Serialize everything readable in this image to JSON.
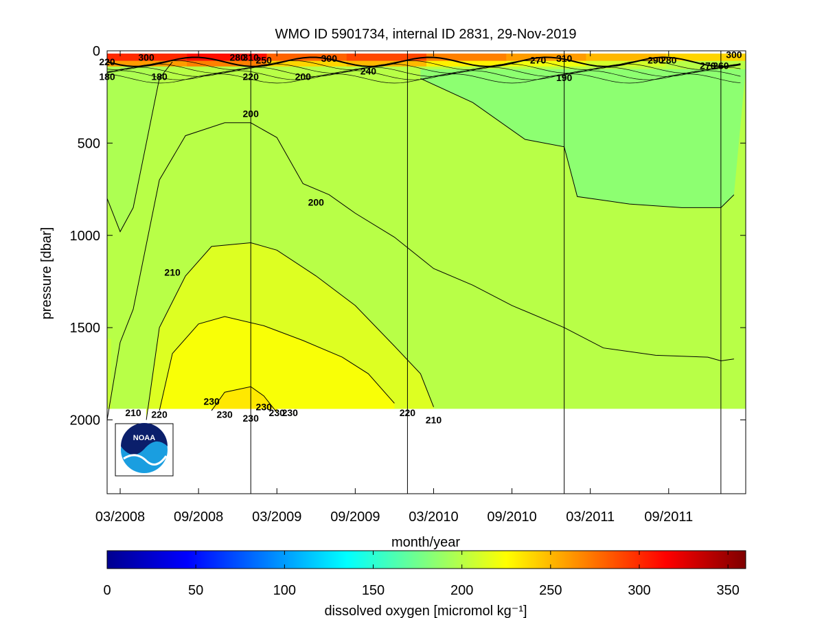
{
  "chart_data": {
    "type": "heatmap",
    "title": "WMO ID 5901734, internal ID 2831, 29-Nov-2019",
    "xlabel": "month/year",
    "ylabel": "pressure [dbar]",
    "colorbar_label": "dissolved oxygen [micromol kg⁻¹]",
    "x_ticks": [
      "03/2008",
      "09/2008",
      "03/2009",
      "09/2009",
      "03/2010",
      "09/2010",
      "03/2011",
      "09/2011"
    ],
    "y_ticks": [
      0,
      500,
      1000,
      1500,
      2000
    ],
    "colorbar_ticks": [
      0,
      50,
      100,
      150,
      200,
      250,
      300,
      350
    ],
    "x_range": [
      "2008-02",
      "2012-02"
    ],
    "ylim": [
      0,
      2400
    ],
    "clim": [
      0,
      360
    ],
    "colormap": "jet",
    "year_boundaries": [
      "2009-01",
      "2010-01",
      "2011-01",
      "2012-01"
    ],
    "contours": [
      {
        "level": 180,
        "label": "180",
        "points": [
          [
            "2008-02",
            800
          ],
          [
            "2008-03",
            980
          ],
          [
            "2008-04",
            850
          ],
          [
            "2008-05",
            500
          ],
          [
            "2008-06",
            150
          ],
          [
            "2008-07",
            60
          ]
        ]
      },
      {
        "level": 200,
        "label": "200",
        "points": [
          [
            "2008-02",
            2000
          ],
          [
            "2008-03",
            1580
          ],
          [
            "2008-04",
            1400
          ],
          [
            "2008-06",
            700
          ],
          [
            "2008-08",
            460
          ],
          [
            "2008-11",
            390
          ],
          [
            "2009-01",
            390
          ],
          [
            "2009-03",
            470
          ],
          [
            "2009-05",
            720
          ],
          [
            "2009-07",
            780
          ],
          [
            "2009-09",
            880
          ],
          [
            "2009-12",
            1010
          ],
          [
            "2010-03",
            1180
          ],
          [
            "2010-06",
            1270
          ],
          [
            "2010-09",
            1380
          ],
          [
            "2011-01",
            1500
          ],
          [
            "2011-04",
            1610
          ],
          [
            "2011-08",
            1650
          ],
          [
            "2011-12",
            1660
          ],
          [
            "2012-01",
            1680
          ],
          [
            "2012-02",
            1670
          ]
        ]
      },
      {
        "level": 210,
        "label": "210",
        "points": [
          [
            "2008-05",
            2000
          ],
          [
            "2008-06",
            1500
          ],
          [
            "2008-08",
            1220
          ],
          [
            "2008-10",
            1060
          ],
          [
            "2009-01",
            1040
          ],
          [
            "2009-03",
            1080
          ],
          [
            "2009-06",
            1220
          ],
          [
            "2009-09",
            1380
          ],
          [
            "2009-12",
            1600
          ],
          [
            "2010-02",
            1750
          ],
          [
            "2010-03",
            1930
          ]
        ]
      },
      {
        "level": 220,
        "label": "220",
        "points": [
          [
            "2008-06",
            1950
          ],
          [
            "2008-07",
            1640
          ],
          [
            "2008-09",
            1480
          ],
          [
            "2008-11",
            1440
          ],
          [
            "2009-02",
            1490
          ],
          [
            "2009-05",
            1570
          ],
          [
            "2009-08",
            1660
          ],
          [
            "2009-10",
            1750
          ],
          [
            "2009-12",
            1910
          ]
        ]
      },
      {
        "level": 230,
        "label": "230",
        "points": [
          [
            "2008-10",
            1950
          ],
          [
            "2008-11",
            1850
          ],
          [
            "2009-01",
            1820
          ],
          [
            "2009-02",
            1870
          ],
          [
            "2009-03",
            1960
          ]
        ]
      },
      {
        "level": 190,
        "label": "190",
        "points": [
          [
            "2010-02",
            150
          ],
          [
            "2010-06",
            280
          ],
          [
            "2010-10",
            480
          ],
          [
            "2011-01",
            520
          ],
          [
            "2011-02",
            790
          ],
          [
            "2011-06",
            830
          ],
          [
            "2011-10",
            850
          ],
          [
            "2012-01",
            850
          ],
          [
            "2012-02",
            780
          ]
        ]
      }
    ],
    "contour_labels": [
      {
        "text": "220",
        "x": "2008-02",
        "y": 60
      },
      {
        "text": "300",
        "x": "2008-05",
        "y": 35
      },
      {
        "text": "180",
        "x": "2008-02",
        "y": 140
      },
      {
        "text": "180",
        "x": "2008-06",
        "y": 140
      },
      {
        "text": "280",
        "x": "2008-12",
        "y": 35
      },
      {
        "text": "310",
        "x": "2009-01",
        "y": 35
      },
      {
        "text": "250",
        "x": "2009-02",
        "y": 50
      },
      {
        "text": "220",
        "x": "2009-01",
        "y": 140
      },
      {
        "text": "200",
        "x": "2009-05",
        "y": 140
      },
      {
        "text": "300",
        "x": "2009-07",
        "y": 40
      },
      {
        "text": "240",
        "x": "2009-10",
        "y": 110
      },
      {
        "text": "200",
        "x": "2009-01",
        "y": 340
      },
      {
        "text": "200",
        "x": "2009-06",
        "y": 820
      },
      {
        "text": "210",
        "x": "2008-07",
        "y": 1200
      },
      {
        "text": "270",
        "x": "2010-11",
        "y": 50
      },
      {
        "text": "310",
        "x": "2011-01",
        "y": 40
      },
      {
        "text": "190",
        "x": "2011-01",
        "y": 145
      },
      {
        "text": "290",
        "x": "2011-08",
        "y": 50
      },
      {
        "text": "280",
        "x": "2011-09",
        "y": 50
      },
      {
        "text": "270",
        "x": "2011-12",
        "y": 80
      },
      {
        "text": "260",
        "x": "2012-01",
        "y": 80
      },
      {
        "text": "300",
        "x": "2012-02",
        "y": 20
      },
      {
        "text": "210",
        "x": "2008-04",
        "y": 1960
      },
      {
        "text": "220",
        "x": "2008-06",
        "y": 1970
      },
      {
        "text": "230",
        "x": "2008-10",
        "y": 1900
      },
      {
        "text": "230",
        "x": "2008-11",
        "y": 1970
      },
      {
        "text": "230",
        "x": "2009-01",
        "y": 1990
      },
      {
        "text": "230",
        "x": "2009-02",
        "y": 1930
      },
      {
        "text": "230",
        "x": "2009-03",
        "y": 1960
      },
      {
        "text": "230",
        "x": "2009-04",
        "y": 1960
      },
      {
        "text": "220",
        "x": "2010-01",
        "y": 1960
      },
      {
        "text": "210",
        "x": "2010-03",
        "y": 2000
      }
    ],
    "surface_layer_values": [
      300,
      310,
      280,
      290,
      270,
      260,
      250,
      240
    ],
    "deep_water_value_range": [
      190,
      235
    ]
  },
  "logo": {
    "text": "NOAA",
    "icon": "noaa-logo"
  },
  "colors": {
    "background": "#ffffff",
    "contour": "#000000",
    "axis": "#000000"
  }
}
